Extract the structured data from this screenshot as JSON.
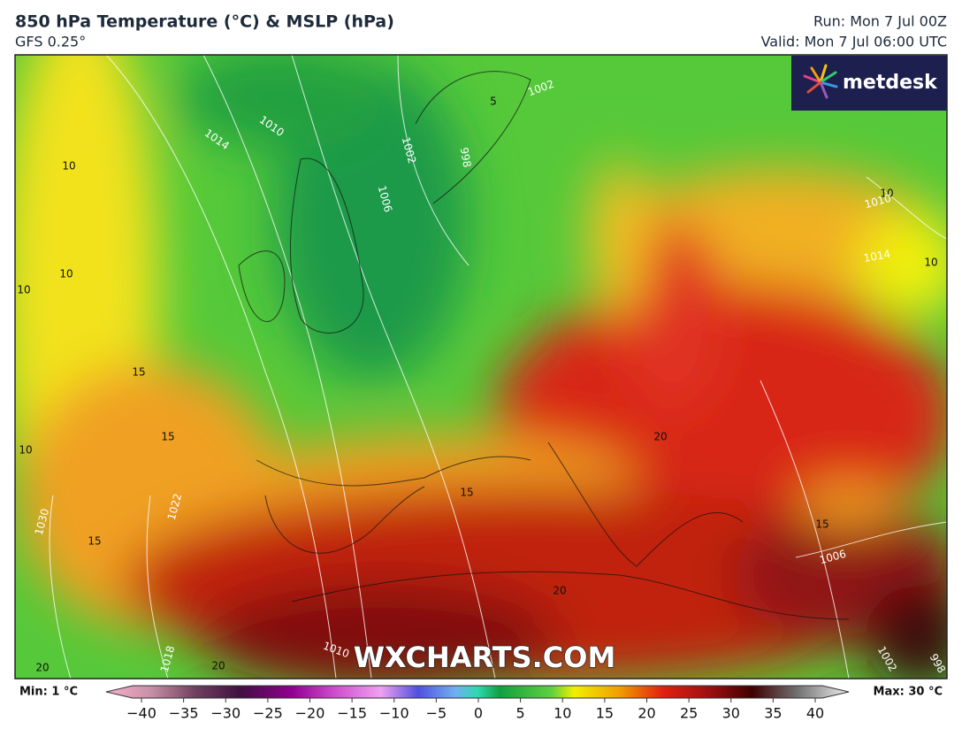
{
  "header": {
    "title": "850 hPa Temperature (°C) & MSLP (hPa)",
    "model": "GFS 0.25°",
    "run": "Run: Mon 7 Jul 00Z",
    "valid": "Valid: Mon 7 Jul 06:00 UTC"
  },
  "logo": "metdesk",
  "watermark": "WXCHARTS.COM",
  "map_labels": [
    "10",
    "10",
    "10",
    "15",
    "15",
    "10",
    "15",
    "1014",
    "1010",
    "1006",
    "1002",
    "998",
    "1002",
    "5",
    "10",
    "1010",
    "1014",
    "10",
    "20",
    "15",
    "1006",
    "15",
    "20",
    "20",
    "20",
    "1022",
    "1030",
    "1018",
    "1010",
    "1002",
    "998"
  ],
  "colorbar": {
    "min_label": "Min: 1 °C",
    "max_label": "Max: 30 °C",
    "ticks": [
      {
        "value": -40,
        "label": "−40"
      },
      {
        "value": -35,
        "label": "−35"
      },
      {
        "value": -30,
        "label": "−30"
      },
      {
        "value": -25,
        "label": "−25"
      },
      {
        "value": -20,
        "label": "−20"
      },
      {
        "value": -15,
        "label": "−15"
      },
      {
        "value": -10,
        "label": "−10"
      },
      {
        "value": -5,
        "label": "−5"
      },
      0,
      5,
      10,
      15,
      20,
      25,
      30,
      35,
      40
    ]
  }
}
